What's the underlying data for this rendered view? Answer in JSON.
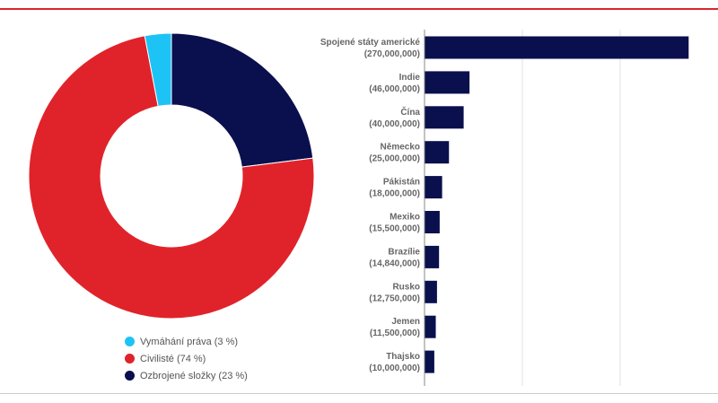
{
  "chart_data": [
    {
      "type": "pie",
      "donut": true,
      "slices": [
        {
          "label": "Ozbrojené složky",
          "value": 23,
          "legend": "Ozbrojené složky (23 %)",
          "color": "#0a0f4d"
        },
        {
          "label": "Civilisté",
          "value": 74,
          "legend": "Civilisté (74 %)",
          "color": "#e0232a"
        },
        {
          "label": "Vymáhání práva",
          "value": 3,
          "legend": "Vymáhání práva (3 %)",
          "color": "#1ec3f5"
        }
      ],
      "legend_order": [
        2,
        1,
        0
      ],
      "legend_position": "bottom"
    },
    {
      "type": "bar",
      "orientation": "horizontal",
      "color": "#0a0f4d",
      "categories": [
        "Spojené státy americké",
        "Indie",
        "Čína",
        "Německo",
        "Pákistán",
        "Mexiko",
        "Brazílie",
        "Rusko",
        "Jemen",
        "Thajsko"
      ],
      "value_labels": [
        "(270,000,000)",
        "(46,000,000)",
        "(40,000,000)",
        "(25,000,000)",
        "(18,000,000)",
        "(15,500,000)",
        "(14,840,000)",
        "(12,750,000)",
        "(11,500,000)",
        "(10,000,000)"
      ],
      "values": [
        270000000,
        46000000,
        40000000,
        25000000,
        18000000,
        15500000,
        14840000,
        12750000,
        11500000,
        10000000
      ],
      "xlim": [
        0,
        300000000
      ],
      "grid_step": 100000000,
      "grid": true
    }
  ]
}
